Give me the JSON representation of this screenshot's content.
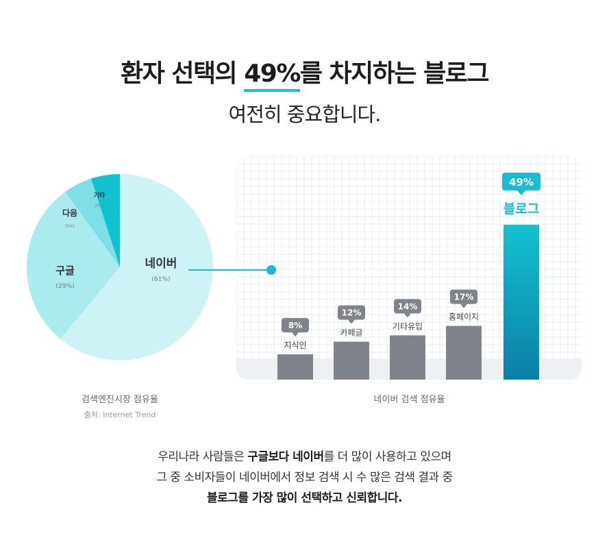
{
  "header": {
    "title_prefix": "환자 선택의",
    "title_highlight": "49%",
    "title_suffix": "를 차지하는 블로그",
    "subtitle": "여전히 중요합니다."
  },
  "accent_color": "#17bdd0",
  "chart_data": [
    {
      "type": "pie",
      "categories": [
        "네이버",
        "구글",
        "다음",
        "기타"
      ],
      "values": [
        61,
        29,
        5,
        5
      ],
      "value_labels": [
        "(61%)",
        "(29%)",
        "(5%)",
        "(5%)"
      ],
      "colors": [
        "#cdf3f6",
        "#aaebf0",
        "#7fdfe6",
        "#10c1cf"
      ],
      "caption": "검색엔진시장 점유율",
      "source": "출처: Internet Trend"
    },
    {
      "type": "bar",
      "categories": [
        "지식인",
        "카페글",
        "기타유입",
        "홈페이지",
        "블로그"
      ],
      "values": [
        8,
        12,
        14,
        17,
        49
      ],
      "value_labels": [
        "8%",
        "12%",
        "14%",
        "17%",
        "49%"
      ],
      "highlight": "블로그",
      "bar_color": "#7f848c",
      "highlight_gradient": [
        "#13c2cf",
        "#0c7fa9"
      ],
      "ylim": [
        0,
        50
      ],
      "grid": true,
      "caption": "네이버 검색 점유율"
    }
  ],
  "footer": {
    "line1_a": "우리나라 사람들은 ",
    "line1_b": "구글보다 네이버",
    "line1_c": "를 더 많이 사용하고 있으며",
    "line2": "그 중 소비자들이 네이버에서 정보 검색 시 수 많은 검색 결과 중",
    "line3": "블로그를 가장 많이 선택하고 신뢰합니다."
  }
}
